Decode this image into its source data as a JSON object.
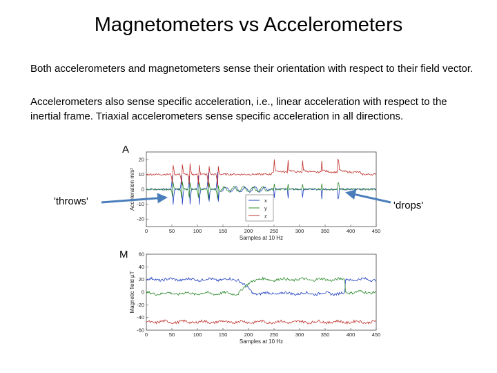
{
  "slide": {
    "title": "Magnetometers vs Accelerometers",
    "paragraph1": "Both accelerometers and magnetometers sense their orientation with respect to their field vector.",
    "paragraph2": "Accelerometers also sense specific acceleration, i.e., linear acceleration with respect to the inertial frame. Triaxial accelerometers sense specific acceleration in all directions.",
    "label_a": "A",
    "label_m": "M",
    "label_throws": "'throws'",
    "label_drops": "'drops'",
    "arrow_color": "#4a7ebb"
  },
  "chart_data": [
    {
      "type": "line",
      "xlabel": "Samples at 10 Hz",
      "ylabel": "Acceleration m/s²",
      "xlim": [
        0,
        450
      ],
      "ylim": [
        -25,
        25
      ],
      "xticks": [
        0,
        50,
        100,
        150,
        200,
        250,
        300,
        350,
        400,
        450
      ],
      "yticks": [
        20,
        10,
        0,
        -10,
        -20
      ],
      "legend": [
        "x",
        "y",
        "z"
      ],
      "legend_position": "bottom-center",
      "series": [
        {
          "name": "x",
          "color": "#1f3fbf",
          "baseline": 0
        },
        {
          "name": "y",
          "color": "#2e8b2e",
          "baseline": 0
        },
        {
          "name": "z",
          "color": "#c0302a",
          "baseline": 10
        }
      ]
    },
    {
      "type": "line",
      "xlabel": "Samples at 10 Hz",
      "ylabel": "Magnetic field µT",
      "xlim": [
        0,
        450
      ],
      "ylim": [
        -60,
        60
      ],
      "xticks": [
        0,
        50,
        100,
        150,
        200,
        250,
        300,
        350,
        400,
        450
      ],
      "yticks": [
        60,
        40,
        20,
        0,
        -20,
        -40,
        -60
      ],
      "series": [
        {
          "name": "x",
          "color": "#1f3fbf",
          "start": 20,
          "end": 20
        },
        {
          "name": "y",
          "color": "#2e8b2e",
          "start": 0,
          "end": 0
        },
        {
          "name": "z",
          "color": "#c0302a",
          "start": -45,
          "end": -45
        }
      ]
    }
  ]
}
